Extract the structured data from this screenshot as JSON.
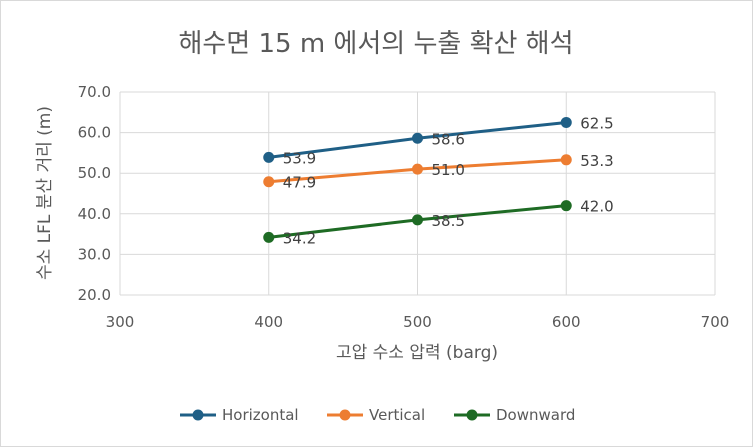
{
  "chart_data": {
    "type": "line",
    "title": "해수면 15 m 에서의 누출 확산 해석",
    "xlabel": "고압 수소 압력 (barg)",
    "ylabel": "수소 LFL 분산 거리 (m)",
    "xlim": [
      300,
      700
    ],
    "ylim": [
      20,
      70
    ],
    "xticks": [
      "300",
      "400",
      "500",
      "600",
      "700"
    ],
    "yticks": [
      "20.0",
      "30.0",
      "40.0",
      "50.0",
      "60.0",
      "70.0"
    ],
    "grid": true,
    "legend_position": "bottom",
    "series": [
      {
        "name": "Horizontal",
        "color": "#1f5f86",
        "x": [
          400,
          500,
          600
        ],
        "y": [
          53.9,
          58.6,
          62.5
        ],
        "labels": [
          "53.9",
          "58.6",
          "62.5"
        ]
      },
      {
        "name": "Vertical",
        "color": "#ed7d31",
        "x": [
          400,
          500,
          600
        ],
        "y": [
          47.9,
          51.0,
          53.3
        ],
        "labels": [
          "47.9",
          "51.0",
          "53.3"
        ]
      },
      {
        "name": "Downward",
        "color": "#1e6b24",
        "x": [
          400,
          500,
          600
        ],
        "y": [
          34.2,
          38.5,
          42.0
        ],
        "labels": [
          "34.2",
          "38.5",
          "42.0"
        ]
      }
    ]
  }
}
